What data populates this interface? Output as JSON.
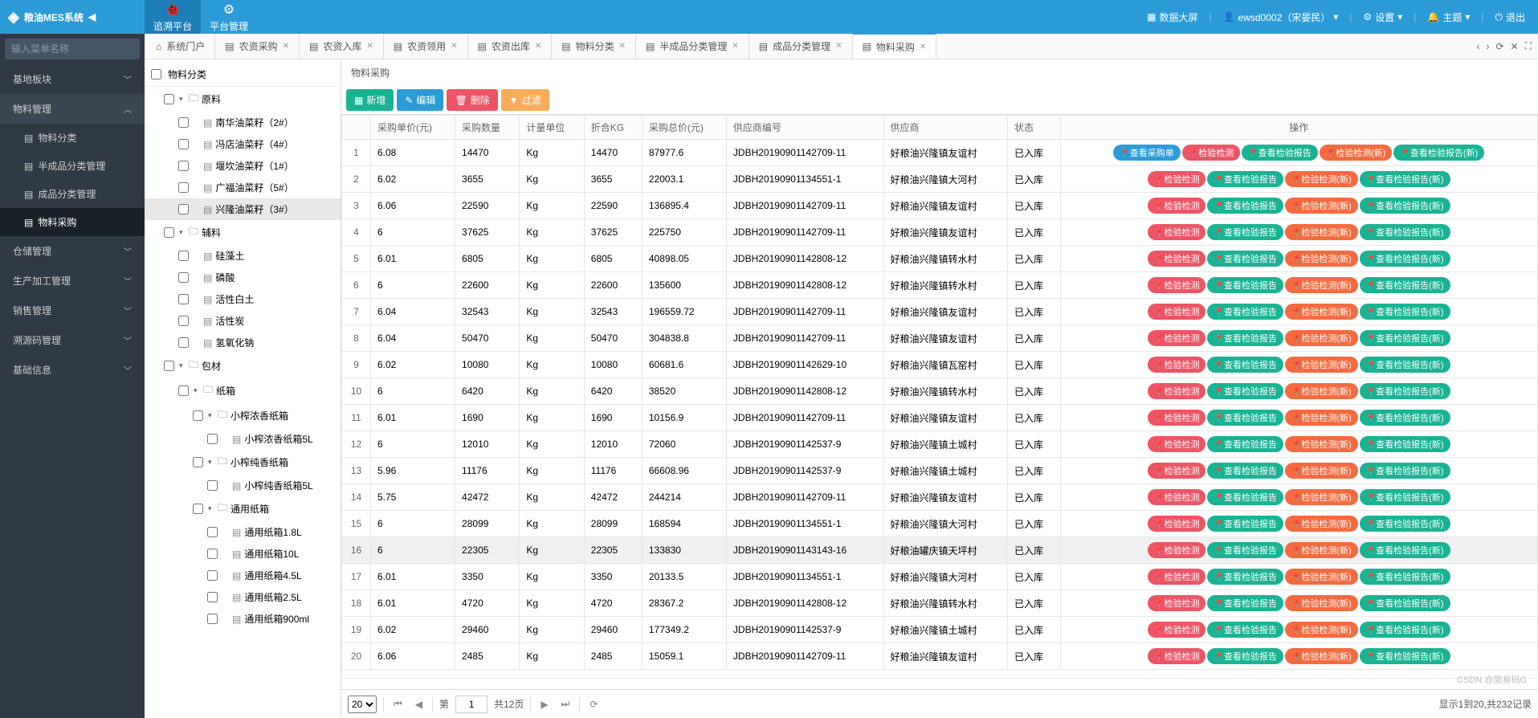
{
  "app": {
    "name": "粮油MES系统"
  },
  "topnav": [
    {
      "label": "追溯平台",
      "active": true
    },
    {
      "label": "平台管理"
    }
  ],
  "headerRight": {
    "dashboard": "数据大屏",
    "user": "ewsd0002（宋晏民）",
    "settings": "设置",
    "theme": "主题",
    "logout": "退出"
  },
  "searchPlaceholder": "输入菜单名称",
  "sidebar": [
    {
      "label": "基地板块",
      "type": "group",
      "open": false
    },
    {
      "label": "物料管理",
      "type": "group",
      "open": true,
      "children": [
        {
          "label": "物料分类"
        },
        {
          "label": "半成品分类管理"
        },
        {
          "label": "成品分类管理"
        },
        {
          "label": "物料采购",
          "active": true
        }
      ]
    },
    {
      "label": "仓储管理",
      "type": "group",
      "open": false
    },
    {
      "label": "生产加工管理",
      "type": "group",
      "open": false
    },
    {
      "label": "销售管理",
      "type": "group",
      "open": false
    },
    {
      "label": "溯源码管理",
      "type": "group",
      "open": false
    },
    {
      "label": "基础信息",
      "type": "group",
      "open": false
    }
  ],
  "tabs": [
    {
      "label": "系统门户",
      "icon": "⌂",
      "closable": false
    },
    {
      "label": "农资采购",
      "closable": true
    },
    {
      "label": "农资入库",
      "closable": true
    },
    {
      "label": "农资领用",
      "closable": true
    },
    {
      "label": "农资出库",
      "closable": true
    },
    {
      "label": "物料分类",
      "closable": true
    },
    {
      "label": "半成品分类管理",
      "closable": true
    },
    {
      "label": "成品分类管理",
      "closable": true
    },
    {
      "label": "物料采购",
      "closable": true,
      "active": true
    }
  ],
  "tree": {
    "header": "物料分类",
    "nodes": [
      {
        "label": "原料",
        "depth": 1,
        "folder": true,
        "open": true
      },
      {
        "label": "南华油菜籽（2#）",
        "depth": 2
      },
      {
        "label": "冯店油菜籽（4#）",
        "depth": 2
      },
      {
        "label": "堰坎油菜籽（1#）",
        "depth": 2
      },
      {
        "label": "广福油菜籽（5#）",
        "depth": 2
      },
      {
        "label": "兴隆油菜籽（3#）",
        "depth": 2,
        "selected": true
      },
      {
        "label": "辅料",
        "depth": 1,
        "folder": true,
        "open": true
      },
      {
        "label": "硅藻土",
        "depth": 2
      },
      {
        "label": "磷酸",
        "depth": 2
      },
      {
        "label": "活性白土",
        "depth": 2
      },
      {
        "label": "活性炭",
        "depth": 2
      },
      {
        "label": "氢氧化钠",
        "depth": 2
      },
      {
        "label": "包材",
        "depth": 1,
        "folder": true,
        "open": true
      },
      {
        "label": "纸箱",
        "depth": 2,
        "folder": true,
        "open": true
      },
      {
        "label": "小榨浓香纸箱",
        "depth": 3,
        "folder": true,
        "open": true
      },
      {
        "label": "小榨浓香纸箱5L",
        "depth": 4
      },
      {
        "label": "小榨纯香纸箱",
        "depth": 3,
        "folder": true,
        "open": true
      },
      {
        "label": "小榨纯香纸箱5L",
        "depth": 4
      },
      {
        "label": "通用纸箱",
        "depth": 3,
        "folder": true,
        "open": true
      },
      {
        "label": "通用纸箱1.8L",
        "depth": 4
      },
      {
        "label": "通用纸箱10L",
        "depth": 4
      },
      {
        "label": "通用纸箱4.5L",
        "depth": 4
      },
      {
        "label": "通用纸箱2.5L",
        "depth": 4
      },
      {
        "label": "通用纸箱900ml",
        "depth": 4
      }
    ]
  },
  "panel": {
    "title": "物料采购"
  },
  "buttons": {
    "add": "新增",
    "edit": "编辑",
    "del": "删除",
    "filter": "过滤"
  },
  "columns": [
    "采购单价(元)",
    "采购数量",
    "计量单位",
    "折合KG",
    "采购总价(元)",
    "供应商编号",
    "供应商",
    "状态",
    "操作"
  ],
  "opsHeader": "操作",
  "pills": {
    "viewOrder": "查看采购单",
    "inspect": "检验检测",
    "viewReport": "查看检验报告",
    "inspectNew": "检验检测(新)",
    "viewReportNew": "查看检验报告(新)"
  },
  "rows": [
    {
      "n": 1,
      "price": "6.08",
      "qty": "14470",
      "unit": "Kg",
      "kg": "14470",
      "total": "87977.6",
      "sup": "JDBH20190901142709-11",
      "supn": "好粮油兴隆镇友谊村",
      "st": "已入库",
      "first": true
    },
    {
      "n": 2,
      "price": "6.02",
      "qty": "3655",
      "unit": "Kg",
      "kg": "3655",
      "total": "22003.1",
      "sup": "JDBH20190901134551-1",
      "supn": "好粮油兴隆镇大河村",
      "st": "已入库"
    },
    {
      "n": 3,
      "price": "6.06",
      "qty": "22590",
      "unit": "Kg",
      "kg": "22590",
      "total": "136895.4",
      "sup": "JDBH20190901142709-11",
      "supn": "好粮油兴隆镇友谊村",
      "st": "已入库"
    },
    {
      "n": 4,
      "price": "6",
      "qty": "37625",
      "unit": "Kg",
      "kg": "37625",
      "total": "225750",
      "sup": "JDBH20190901142709-11",
      "supn": "好粮油兴隆镇友谊村",
      "st": "已入库"
    },
    {
      "n": 5,
      "price": "6.01",
      "qty": "6805",
      "unit": "Kg",
      "kg": "6805",
      "total": "40898.05",
      "sup": "JDBH20190901142808-12",
      "supn": "好粮油兴隆镇转水村",
      "st": "已入库"
    },
    {
      "n": 6,
      "price": "6",
      "qty": "22600",
      "unit": "Kg",
      "kg": "22600",
      "total": "135600",
      "sup": "JDBH20190901142808-12",
      "supn": "好粮油兴隆镇转水村",
      "st": "已入库"
    },
    {
      "n": 7,
      "price": "6.04",
      "qty": "32543",
      "unit": "Kg",
      "kg": "32543",
      "total": "196559.72",
      "sup": "JDBH20190901142709-11",
      "supn": "好粮油兴隆镇友谊村",
      "st": "已入库"
    },
    {
      "n": 8,
      "price": "6.04",
      "qty": "50470",
      "unit": "Kg",
      "kg": "50470",
      "total": "304838.8",
      "sup": "JDBH20190901142709-11",
      "supn": "好粮油兴隆镇友谊村",
      "st": "已入库"
    },
    {
      "n": 9,
      "price": "6.02",
      "qty": "10080",
      "unit": "Kg",
      "kg": "10080",
      "total": "60681.6",
      "sup": "JDBH20190901142629-10",
      "supn": "好粮油兴隆镇瓦窑村",
      "st": "已入库"
    },
    {
      "n": 10,
      "price": "6",
      "qty": "6420",
      "unit": "Kg",
      "kg": "6420",
      "total": "38520",
      "sup": "JDBH20190901142808-12",
      "supn": "好粮油兴隆镇转水村",
      "st": "已入库"
    },
    {
      "n": 11,
      "price": "6.01",
      "qty": "1690",
      "unit": "Kg",
      "kg": "1690",
      "total": "10156.9",
      "sup": "JDBH20190901142709-11",
      "supn": "好粮油兴隆镇友谊村",
      "st": "已入库"
    },
    {
      "n": 12,
      "price": "6",
      "qty": "12010",
      "unit": "Kg",
      "kg": "12010",
      "total": "72060",
      "sup": "JDBH20190901142537-9",
      "supn": "好粮油兴隆镇土城村",
      "st": "已入库"
    },
    {
      "n": 13,
      "price": "5.96",
      "qty": "11176",
      "unit": "Kg",
      "kg": "11176",
      "total": "66608.96",
      "sup": "JDBH20190901142537-9",
      "supn": "好粮油兴隆镇土城村",
      "st": "已入库"
    },
    {
      "n": 14,
      "price": "5.75",
      "qty": "42472",
      "unit": "Kg",
      "kg": "42472",
      "total": "244214",
      "sup": "JDBH20190901142709-11",
      "supn": "好粮油兴隆镇友谊村",
      "st": "已入库"
    },
    {
      "n": 15,
      "price": "6",
      "qty": "28099",
      "unit": "Kg",
      "kg": "28099",
      "total": "168594",
      "sup": "JDBH20190901134551-1",
      "supn": "好粮油兴隆镇大河村",
      "st": "已入库"
    },
    {
      "n": 16,
      "price": "6",
      "qty": "22305",
      "unit": "Kg",
      "kg": "22305",
      "total": "133830",
      "sup": "JDBH20190901143143-16",
      "supn": "好粮油罐庆镇天坪村",
      "st": "已入库",
      "hl": true
    },
    {
      "n": 17,
      "price": "6.01",
      "qty": "3350",
      "unit": "Kg",
      "kg": "3350",
      "total": "20133.5",
      "sup": "JDBH20190901134551-1",
      "supn": "好粮油兴隆镇大河村",
      "st": "已入库"
    },
    {
      "n": 18,
      "price": "6.01",
      "qty": "4720",
      "unit": "Kg",
      "kg": "4720",
      "total": "28367.2",
      "sup": "JDBH20190901142808-12",
      "supn": "好粮油兴隆镇转水村",
      "st": "已入库"
    },
    {
      "n": 19,
      "price": "6.02",
      "qty": "29460",
      "unit": "Kg",
      "kg": "29460",
      "total": "177349.2",
      "sup": "JDBH20190901142537-9",
      "supn": "好粮油兴隆镇土城村",
      "st": "已入库"
    },
    {
      "n": 20,
      "price": "6.06",
      "qty": "2485",
      "unit": "Kg",
      "kg": "2485",
      "total": "15059.1",
      "sup": "JDBH20190901142709-11",
      "supn": "好粮油兴隆镇友谊村",
      "st": "已入库"
    }
  ],
  "pager": {
    "size": "20",
    "pagePrefix": "第",
    "page": "1",
    "totalPages": "共12页",
    "info": "显示1到20,共232记录"
  },
  "watermark": "CSDN @简易码G"
}
